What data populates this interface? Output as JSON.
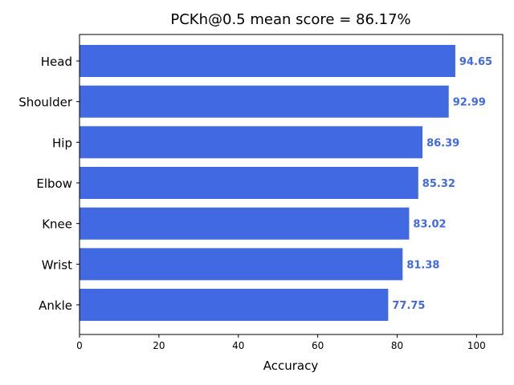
{
  "chart_data": {
    "type": "bar",
    "orientation": "horizontal",
    "title": "PCKh@0.5 mean score = 86.17%",
    "xlabel": "Accuracy",
    "ylabel": "",
    "categories": [
      "Head",
      "Shoulder",
      "Hip",
      "Elbow",
      "Knee",
      "Wrist",
      "Ankle"
    ],
    "values": [
      94.65,
      92.99,
      86.39,
      85.32,
      83.02,
      81.38,
      77.75
    ],
    "value_labels": [
      "94.65",
      "92.99",
      "86.39",
      "85.32",
      "83.02",
      "81.38",
      "77.75"
    ],
    "xlim": [
      0,
      106.6
    ],
    "xticks": [
      0,
      20,
      40,
      60,
      80,
      100
    ],
    "xtick_labels": [
      "0",
      "20",
      "40",
      "60",
      "80",
      "100"
    ],
    "grid": false,
    "legend": "none",
    "bar_color": "#4169e1",
    "value_label_color": "#4169e1"
  }
}
